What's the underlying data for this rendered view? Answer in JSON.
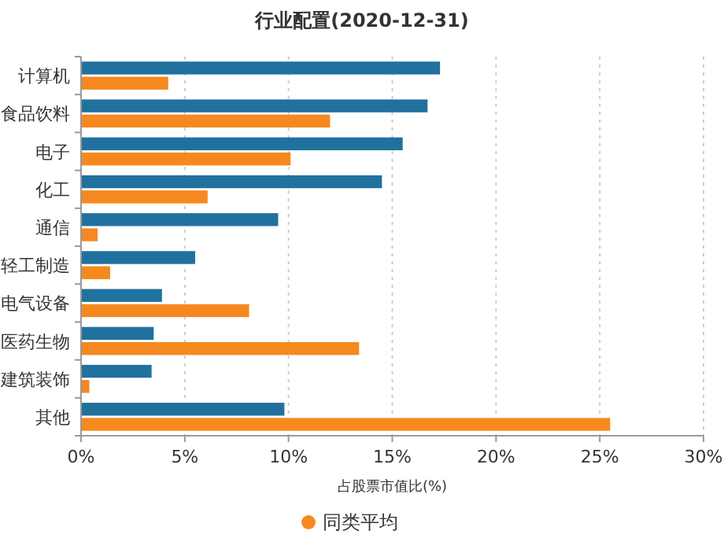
{
  "chart_data": {
    "type": "bar",
    "orientation": "horizontal",
    "title": "行业配置(2020-12-31)",
    "xlabel": "占股票市值比(%)",
    "categories": [
      "计算机",
      "食品饮料",
      "电子",
      "化工",
      "通信",
      "轻工制造",
      "电气设备",
      "医药生物",
      "建筑装饰",
      "其他"
    ],
    "series": [
      {
        "color": "#21719e",
        "values": [
          17.3,
          16.7,
          15.5,
          14.5,
          9.5,
          5.5,
          3.9,
          3.5,
          3.4,
          9.8
        ]
      },
      {
        "name": "同类平均",
        "color": "#f5891f",
        "values": [
          4.2,
          12.0,
          10.1,
          6.1,
          0.8,
          1.4,
          8.1,
          13.4,
          0.4,
          25.5
        ]
      }
    ],
    "xlim": [
      0,
      30
    ],
    "xticks": [
      {
        "value": 0,
        "label": "0%"
      },
      {
        "value": 5,
        "label": "5%"
      },
      {
        "value": 10,
        "label": "10%"
      },
      {
        "value": 15,
        "label": "15%"
      },
      {
        "value": 20,
        "label": "20%"
      },
      {
        "value": 25,
        "label": "25%"
      },
      {
        "value": 30,
        "label": "30%"
      }
    ],
    "grid": "x",
    "legend": "bottom"
  }
}
